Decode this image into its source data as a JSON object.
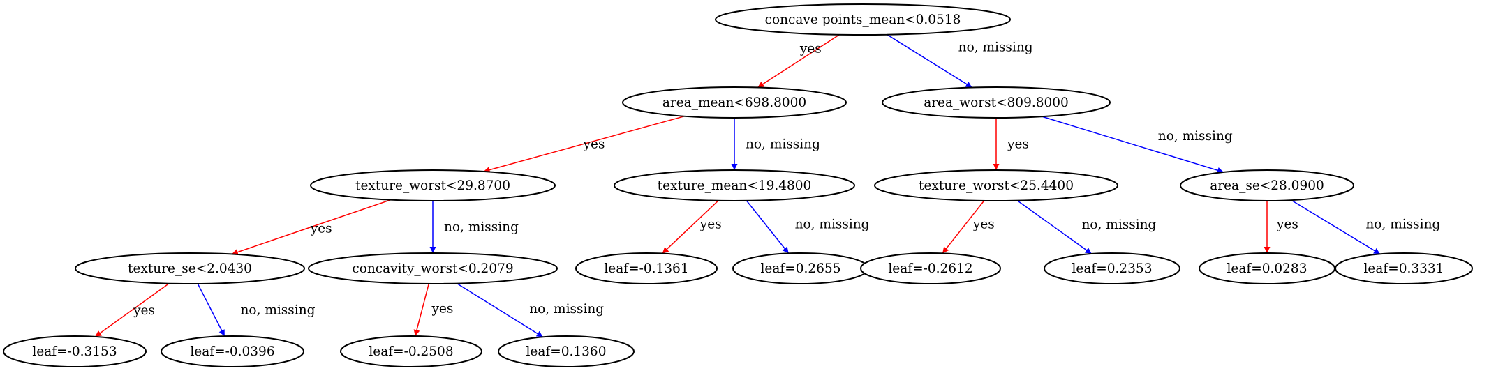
{
  "colors": {
    "yes": "#ff0000",
    "no": "#0000ff",
    "node_stroke": "#000000"
  },
  "edge_labels": {
    "yes": "yes",
    "no": "no, missing"
  },
  "tree": {
    "nodes": [
      {
        "id": "n0",
        "label": "concave points_mean<0.0518"
      },
      {
        "id": "n1",
        "label": "area_mean<698.8000"
      },
      {
        "id": "n2",
        "label": "area_worst<809.8000"
      },
      {
        "id": "n3",
        "label": "texture_worst<29.8700"
      },
      {
        "id": "n4",
        "label": "texture_mean<19.4800"
      },
      {
        "id": "n5",
        "label": "texture_worst<25.4400"
      },
      {
        "id": "n6",
        "label": "area_se<28.0900"
      },
      {
        "id": "n7",
        "label": "texture_se<2.0430"
      },
      {
        "id": "n8",
        "label": "concavity_worst<0.2079"
      },
      {
        "id": "n9",
        "label": "leaf=-0.1361"
      },
      {
        "id": "n10",
        "label": "leaf=0.2655"
      },
      {
        "id": "n11",
        "label": "leaf=-0.2612"
      },
      {
        "id": "n12",
        "label": "leaf=0.2353"
      },
      {
        "id": "n13",
        "label": "leaf=0.0283"
      },
      {
        "id": "n14",
        "label": "leaf=0.3331"
      },
      {
        "id": "n15",
        "label": "leaf=-0.3153"
      },
      {
        "id": "n16",
        "label": "leaf=-0.0396"
      },
      {
        "id": "n17",
        "label": "leaf=-0.2508"
      },
      {
        "id": "n18",
        "label": "leaf=0.1360"
      }
    ],
    "edges": [
      {
        "from": "n0",
        "to": "n1",
        "branch": "yes"
      },
      {
        "from": "n0",
        "to": "n2",
        "branch": "no"
      },
      {
        "from": "n1",
        "to": "n3",
        "branch": "yes"
      },
      {
        "from": "n1",
        "to": "n4",
        "branch": "no"
      },
      {
        "from": "n2",
        "to": "n5",
        "branch": "yes"
      },
      {
        "from": "n2",
        "to": "n6",
        "branch": "no"
      },
      {
        "from": "n3",
        "to": "n7",
        "branch": "yes"
      },
      {
        "from": "n3",
        "to": "n8",
        "branch": "no"
      },
      {
        "from": "n4",
        "to": "n9",
        "branch": "yes"
      },
      {
        "from": "n4",
        "to": "n10",
        "branch": "no"
      },
      {
        "from": "n5",
        "to": "n11",
        "branch": "yes"
      },
      {
        "from": "n5",
        "to": "n12",
        "branch": "no"
      },
      {
        "from": "n6",
        "to": "n13",
        "branch": "yes"
      },
      {
        "from": "n6",
        "to": "n14",
        "branch": "no"
      },
      {
        "from": "n7",
        "to": "n15",
        "branch": "yes"
      },
      {
        "from": "n7",
        "to": "n16",
        "branch": "no"
      },
      {
        "from": "n8",
        "to": "n17",
        "branch": "yes"
      },
      {
        "from": "n8",
        "to": "n18",
        "branch": "no"
      }
    ]
  }
}
